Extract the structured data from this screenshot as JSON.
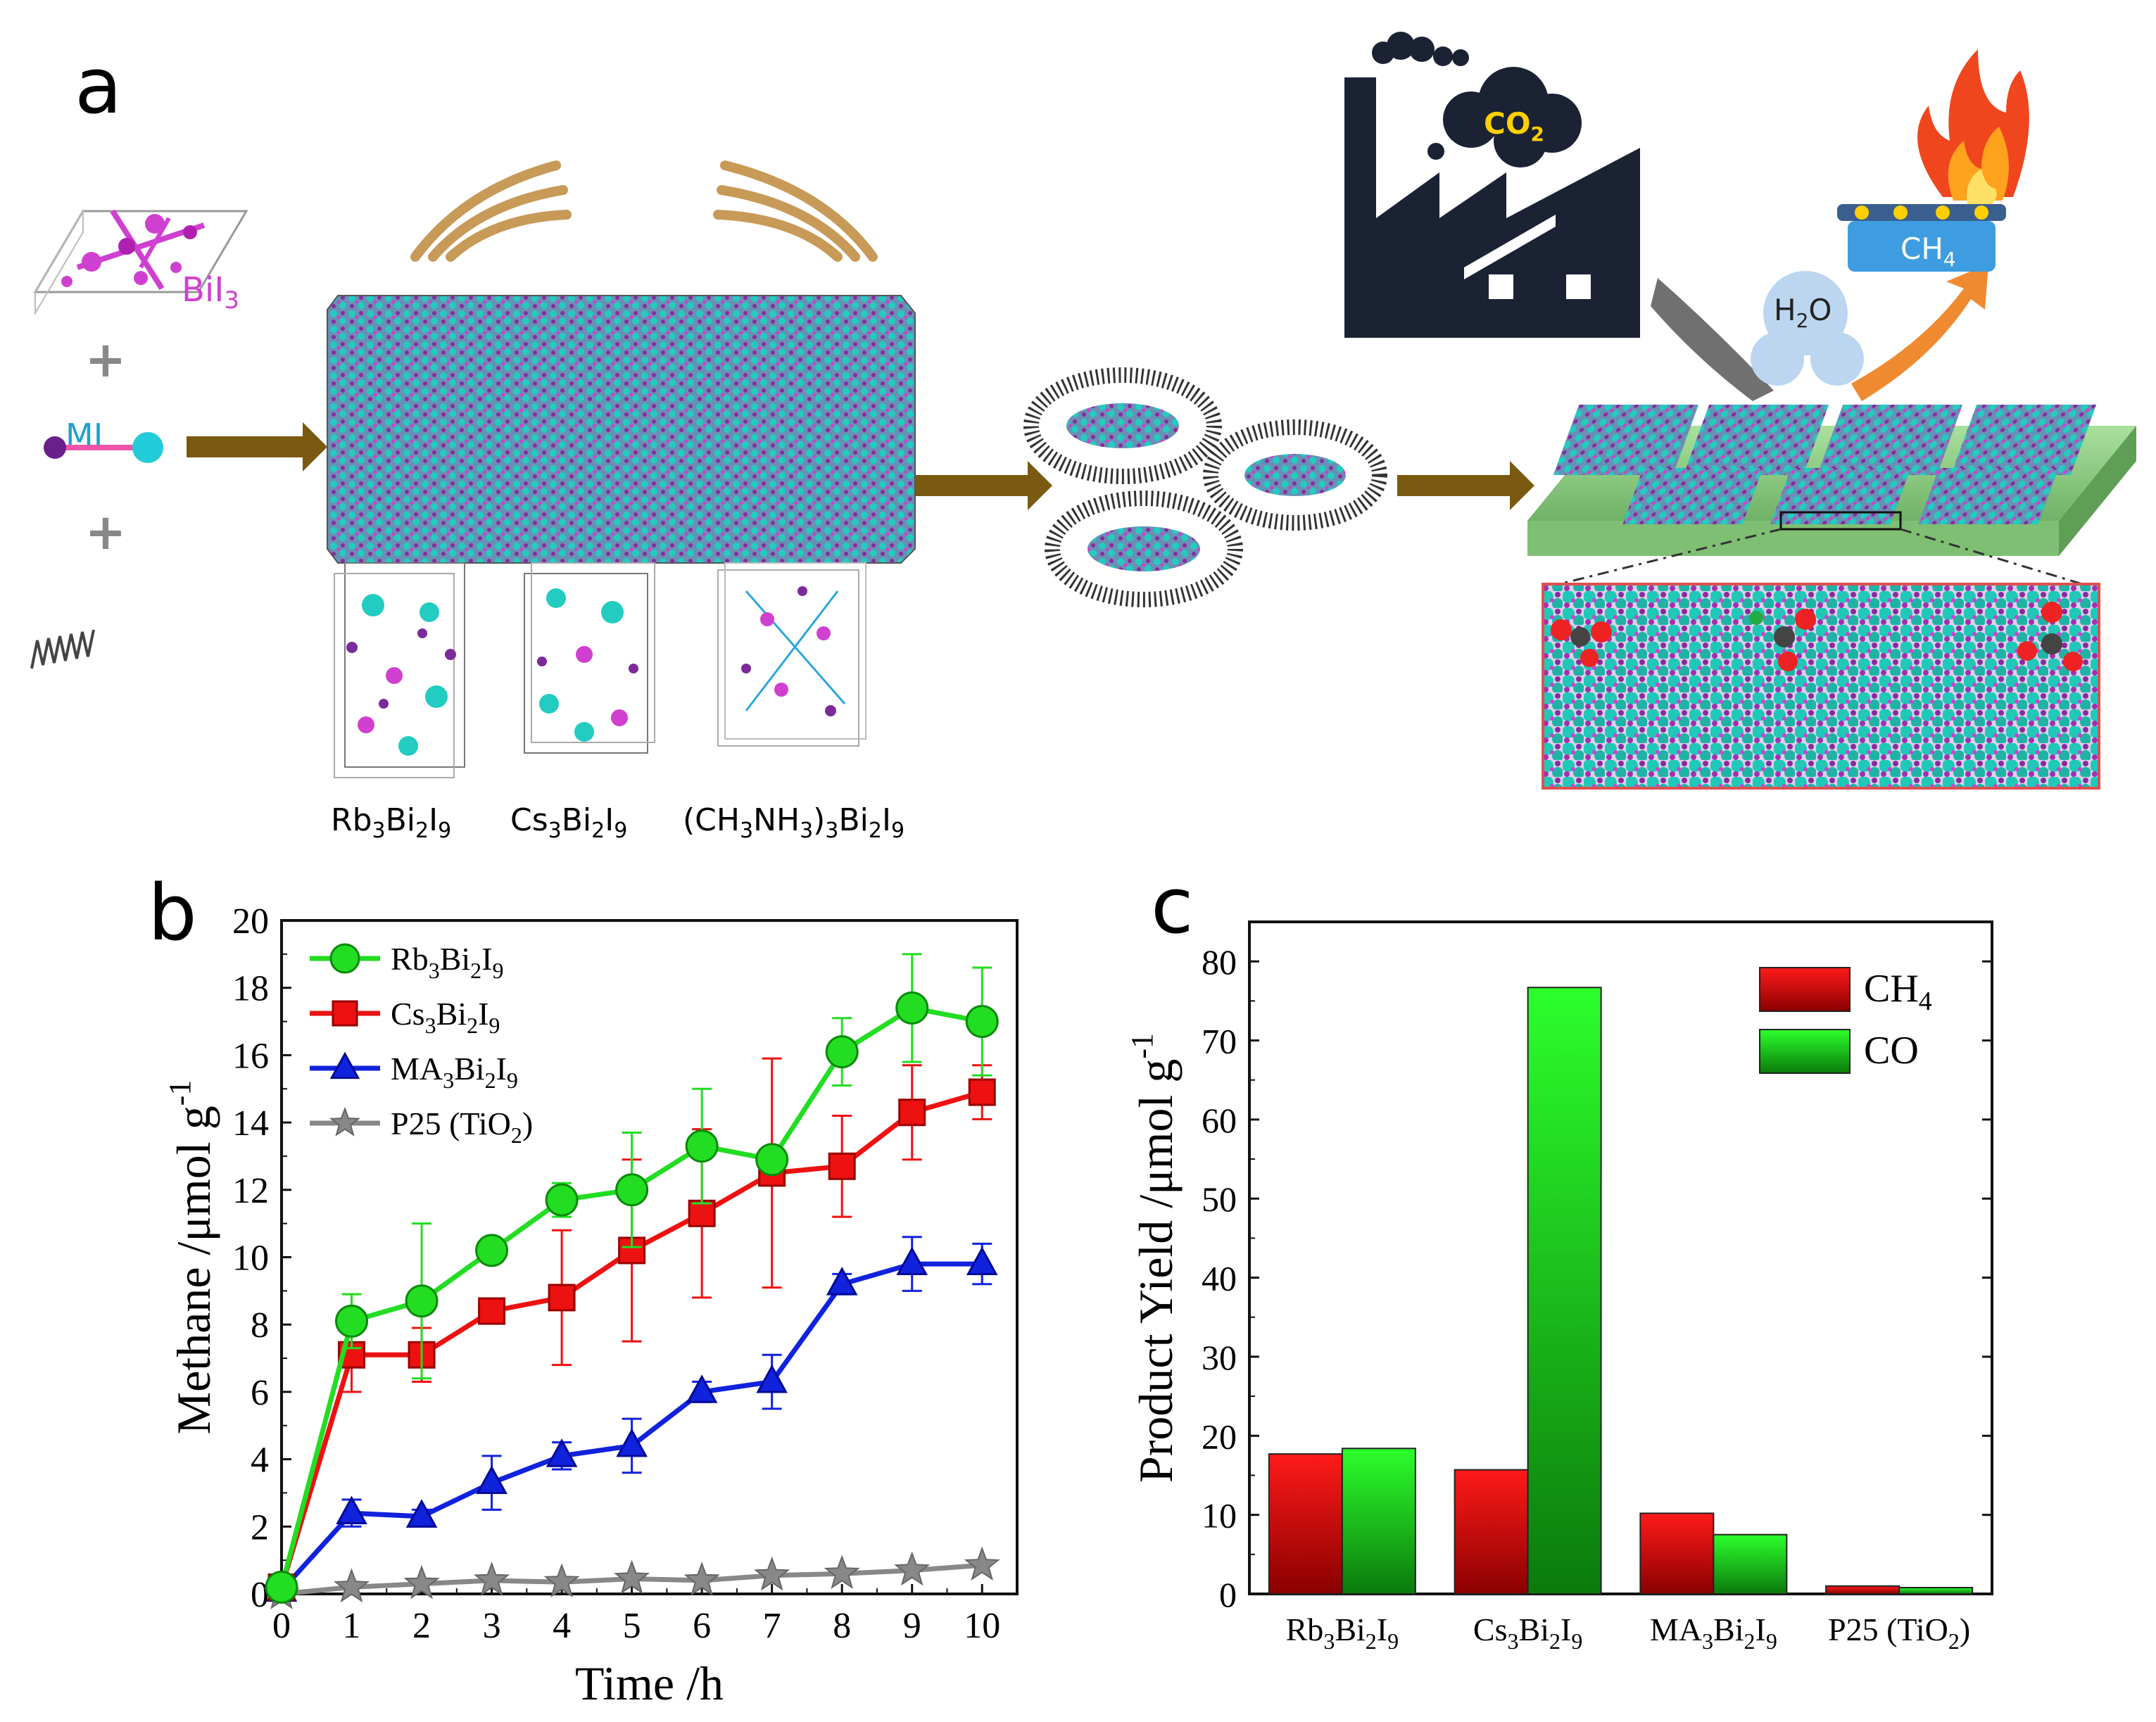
{
  "panels": {
    "a": {
      "label": "a",
      "inputs": {
        "bii3": "BiI",
        "bii3_sub": "3",
        "mi": "MI",
        "plus": "+"
      },
      "structures": [
        {
          "main": "Rb",
          "s1": "3",
          "m2": "Bi",
          "s2": "2",
          "m3": "I",
          "s3": "9"
        },
        {
          "main": "Cs",
          "s1": "3",
          "m2": "Bi",
          "s2": "2",
          "m3": "I",
          "s3": "9"
        },
        {
          "main": "(CH",
          "s1": "3",
          "m2": "NH",
          "s2": "3",
          "m3": ")",
          "s3": "3",
          "m4": "Bi",
          "s4": "2",
          "m5": "I",
          "s5": "9"
        }
      ],
      "factory": {
        "co2": "CO",
        "co2_sub": "2"
      },
      "reaction": {
        "h2o": "H",
        "h2o_sub": "2",
        "h2o_tail": "O",
        "ch4": "CH",
        "ch4_sub": "4"
      },
      "colors": {
        "bi": "#cc33cc",
        "cation": "#22ccc0",
        "iodine": "#7a2a9a",
        "arrow": "#7a5a10",
        "substrate": "#8fd08a",
        "red_frame": "#e05050"
      }
    },
    "b": {
      "label": "b"
    },
    "c": {
      "label": "c"
    }
  },
  "chart_data": [
    {
      "type": "line",
      "panel": "b",
      "xlabel": "Time /h",
      "ylabel": "Methane /μmol g",
      "ylabel_sup": "-1",
      "xlim": [
        0,
        10.5
      ],
      "ylim": [
        0,
        20
      ],
      "xticks": [
        0,
        1,
        2,
        3,
        4,
        5,
        6,
        7,
        8,
        9,
        10
      ],
      "yticks": [
        0,
        2,
        4,
        6,
        8,
        10,
        12,
        14,
        16,
        18,
        20
      ],
      "x": [
        0,
        1,
        2,
        3,
        4,
        5,
        6,
        7,
        8,
        9,
        10
      ],
      "series": [
        {
          "name": "Rb3Bi2I9",
          "legend": {
            "a": "Rb",
            "s1": "3",
            "b": "Bi",
            "s2": "2",
            "c": "I",
            "s3": "9"
          },
          "color": "#22dd22",
          "marker": "circle",
          "values": [
            0.2,
            8.1,
            8.7,
            10.2,
            11.7,
            12.0,
            13.3,
            12.9,
            16.1,
            17.4,
            17.0
          ],
          "errors": [
            0,
            0.8,
            2.3,
            0.2,
            0.5,
            1.7,
            1.7,
            0.3,
            1.0,
            1.6,
            1.6
          ]
        },
        {
          "name": "Cs3Bi2I9",
          "legend": {
            "a": "Cs",
            "s1": "3",
            "b": "Bi",
            "s2": "2",
            "c": "I",
            "s3": "9"
          },
          "color": "#ee1111",
          "marker": "square",
          "values": [
            0.2,
            7.1,
            7.1,
            8.4,
            8.8,
            10.2,
            11.3,
            12.5,
            12.7,
            14.3,
            14.9
          ],
          "errors": [
            0,
            1.1,
            0.8,
            0.3,
            2.0,
            2.7,
            2.5,
            3.4,
            1.5,
            1.4,
            0.8
          ]
        },
        {
          "name": "MA3Bi2I9",
          "legend": {
            "a": "MA",
            "s1": "3",
            "b": "Bi",
            "s2": "2",
            "c": "I",
            "s3": "9"
          },
          "color": "#1122dd",
          "marker": "triangle",
          "values": [
            0.1,
            2.4,
            2.3,
            3.3,
            4.1,
            4.4,
            6.0,
            6.3,
            9.2,
            9.8,
            9.8
          ],
          "errors": [
            0,
            0.4,
            0.2,
            0.8,
            0.4,
            0.8,
            0.3,
            0.8,
            0.3,
            0.8,
            0.6
          ]
        },
        {
          "name": "P25 (TiO2)",
          "legend": {
            "a": "P25 (TiO",
            "s1": "2",
            "b": ")",
            "s2": "",
            "c": "",
            "s3": ""
          },
          "color": "#888888",
          "marker": "star",
          "values": [
            0.0,
            0.2,
            0.3,
            0.4,
            0.35,
            0.45,
            0.4,
            0.55,
            0.6,
            0.7,
            0.85
          ],
          "errors": [
            0,
            0,
            0,
            0,
            0,
            0,
            0,
            0,
            0,
            0,
            0
          ]
        }
      ]
    },
    {
      "type": "bar",
      "panel": "c",
      "ylabel": "Product Yield /μmol g",
      "ylabel_sup": "-1",
      "ylim": [
        0,
        85
      ],
      "yticks": [
        0,
        10,
        20,
        30,
        40,
        50,
        60,
        70,
        80
      ],
      "categories": [
        "Rb3Bi2I9",
        "Cs3Bi2I9",
        "MA3Bi2I9",
        "P25 (TiO2)"
      ],
      "category_labels": [
        {
          "a": "Rb",
          "s1": "3",
          "b": "Bi",
          "s2": "2",
          "c": "I",
          "s3": "9",
          "d": ""
        },
        {
          "a": "Cs",
          "s1": "3",
          "b": "Bi",
          "s2": "2",
          "c": "I",
          "s3": "9",
          "d": ""
        },
        {
          "a": "MA",
          "s1": "3",
          "b": "Bi",
          "s2": "2",
          "c": "I",
          "s3": "9",
          "d": ""
        },
        {
          "a": "P25 (TiO",
          "s1": "2",
          "b": ")",
          "s2": "",
          "c": "",
          "s3": "",
          "d": ""
        }
      ],
      "series": [
        {
          "name": "CH4",
          "legend_main": "CH",
          "legend_sub": "4",
          "color": "#ee1111",
          "values": [
            17.7,
            15.7,
            10.2,
            1.0
          ]
        },
        {
          "name": "CO",
          "legend_main": "CO",
          "legend_sub": "",
          "color": "#11cc11",
          "values": [
            18.4,
            76.7,
            7.5,
            0.8
          ]
        }
      ]
    }
  ]
}
